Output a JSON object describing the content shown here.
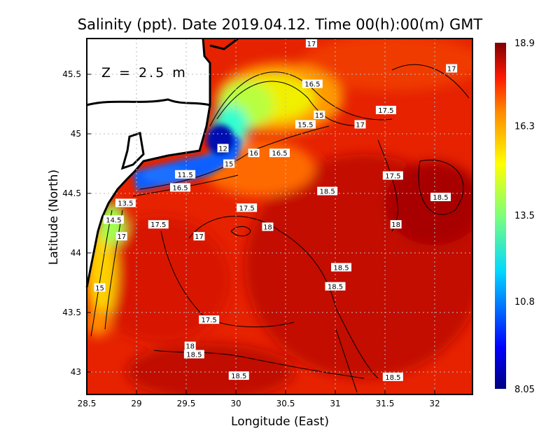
{
  "chart_data": {
    "type": "heatmap",
    "title": "Salinity (ppt). Date 2019.04.12. Time 00(h):00(m) GMT",
    "xlabel": "Longitude (East)",
    "ylabel": "Latitude (North)",
    "annotation": "Z = 2.5 m",
    "xlim": [
      28.5,
      32.38
    ],
    "ylim": [
      42.81,
      45.8
    ],
    "xticks": [
      "28.5",
      "29",
      "29.5",
      "30",
      "30.5",
      "31",
      "31.5",
      "32"
    ],
    "xtick_values": [
      28.5,
      29,
      29.5,
      30,
      30.5,
      31,
      31.5,
      32
    ],
    "yticks": [
      "43",
      "43.5",
      "44",
      "44.5",
      "45",
      "45.5"
    ],
    "ytick_values": [
      43,
      43.5,
      44,
      44.5,
      45,
      45.5
    ],
    "grid": true,
    "colorbar": {
      "min": 8.05,
      "max": 18.9,
      "ticks": [
        "8.05",
        "10.8",
        "13.5",
        "16.3",
        "18.9"
      ],
      "tick_values": [
        8.05,
        10.8,
        13.5,
        16.3,
        18.9
      ],
      "colormap": "jet",
      "placement": "right"
    },
    "contour_labels": [
      {
        "text": "17",
        "lon": 30.76,
        "lat": 45.76
      },
      {
        "text": "17",
        "lon": 32.17,
        "lat": 45.55
      },
      {
        "text": "16.5",
        "lon": 30.77,
        "lat": 45.42
      },
      {
        "text": "17.5",
        "lon": 31.51,
        "lat": 45.2
      },
      {
        "text": "15",
        "lon": 30.84,
        "lat": 45.16
      },
      {
        "text": "15.5",
        "lon": 30.7,
        "lat": 45.08
      },
      {
        "text": "17",
        "lon": 31.25,
        "lat": 45.08
      },
      {
        "text": "12",
        "lon": 29.87,
        "lat": 44.88
      },
      {
        "text": "16",
        "lon": 30.18,
        "lat": 44.84
      },
      {
        "text": "16.5",
        "lon": 30.44,
        "lat": 44.84
      },
      {
        "text": "15",
        "lon": 29.93,
        "lat": 44.75
      },
      {
        "text": "11.5",
        "lon": 29.49,
        "lat": 44.66
      },
      {
        "text": "16.5",
        "lon": 29.44,
        "lat": 44.55
      },
      {
        "text": "17.5",
        "lon": 31.58,
        "lat": 44.65
      },
      {
        "text": "18.5",
        "lon": 30.92,
        "lat": 44.52
      },
      {
        "text": "18.5",
        "lon": 32.06,
        "lat": 44.47
      },
      {
        "text": "13.5",
        "lon": 28.89,
        "lat": 44.42
      },
      {
        "text": "17.5",
        "lon": 30.11,
        "lat": 44.38
      },
      {
        "text": "14.5",
        "lon": 28.77,
        "lat": 44.28
      },
      {
        "text": "17.5",
        "lon": 29.22,
        "lat": 44.24
      },
      {
        "text": "18",
        "lon": 30.32,
        "lat": 44.22
      },
      {
        "text": "18",
        "lon": 31.61,
        "lat": 44.24
      },
      {
        "text": "17",
        "lon": 28.85,
        "lat": 44.14
      },
      {
        "text": "17",
        "lon": 29.63,
        "lat": 44.14
      },
      {
        "text": "18.5",
        "lon": 31.06,
        "lat": 43.88
      },
      {
        "text": "18.5",
        "lon": 31.0,
        "lat": 43.72
      },
      {
        "text": "15",
        "lon": 28.63,
        "lat": 43.71
      },
      {
        "text": "17.5",
        "lon": 29.73,
        "lat": 43.44
      },
      {
        "text": "18",
        "lon": 29.54,
        "lat": 43.22
      },
      {
        "text": "18.5",
        "lon": 29.58,
        "lat": 43.15
      },
      {
        "text": "18.5",
        "lon": 30.03,
        "lat": 42.97
      },
      {
        "text": "18.5",
        "lon": 31.58,
        "lat": 42.96
      }
    ]
  }
}
